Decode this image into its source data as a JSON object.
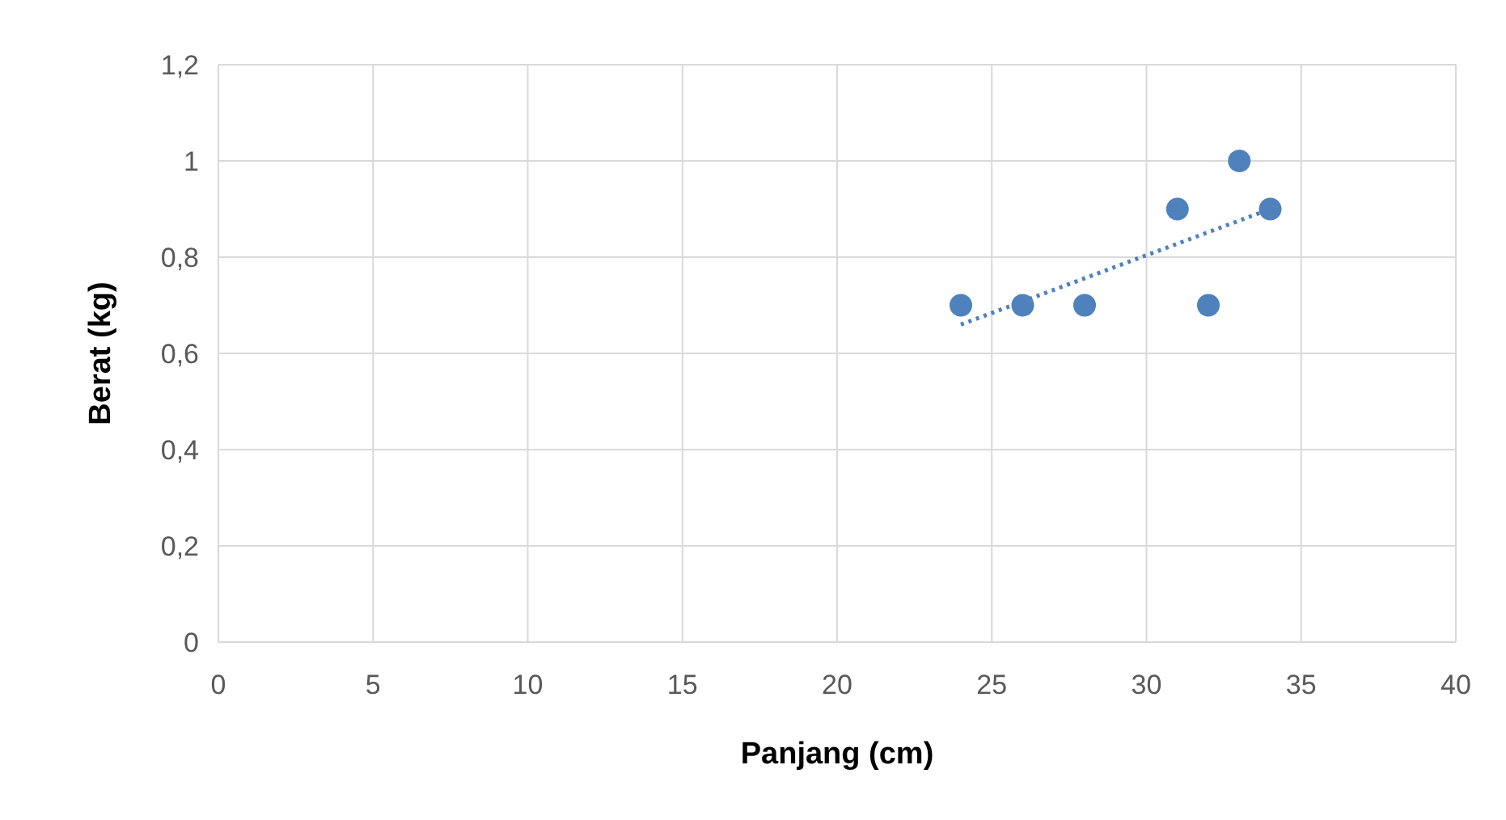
{
  "chart_data": {
    "type": "scatter",
    "xlabel": "Panjang (cm)",
    "ylabel": "Berat (kg)",
    "xlim": [
      0,
      40
    ],
    "xticks": [
      0,
      5,
      10,
      15,
      20,
      25,
      30,
      35,
      40
    ],
    "ylim": [
      0,
      1.2
    ],
    "yticks": [
      0,
      {
        "value": 0.2,
        "label": "0,2"
      },
      {
        "value": 0.4,
        "label": "0,4"
      },
      {
        "value": 0.6,
        "label": "0,6"
      },
      {
        "value": 0.8,
        "label": "0,8"
      },
      1,
      {
        "value": 1.2,
        "label": "1,2"
      }
    ],
    "grid": true,
    "marker": "circle",
    "series": [
      {
        "color": "#4f81bd",
        "x": [
          24,
          26,
          28,
          31,
          32,
          33,
          34
        ],
        "values": [
          0.7,
          0.7,
          0.7,
          0.9,
          0.7,
          1.0,
          0.9
        ]
      },
      {
        "type": "line",
        "color": "#4f81bd",
        "line_style": "dotted",
        "marker": "none",
        "x": [
          24,
          34
        ],
        "values": [
          0.66,
          0.9
        ]
      }
    ]
  }
}
